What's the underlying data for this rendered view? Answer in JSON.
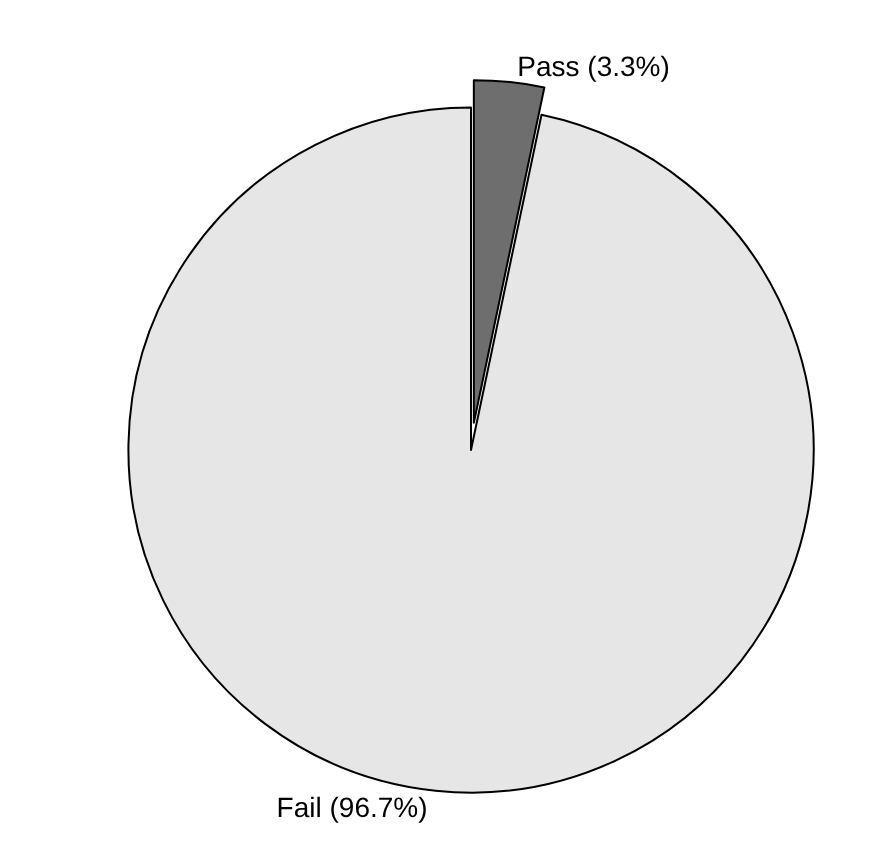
{
  "chart_data": {
    "type": "pie",
    "categories": [
      "Pass (3.3%)",
      "Fail (96.7%)"
    ],
    "values": [
      3.3,
      96.7
    ],
    "colors": [
      "#6e6e6e",
      "#e6e6e6"
    ],
    "legend": false
  }
}
